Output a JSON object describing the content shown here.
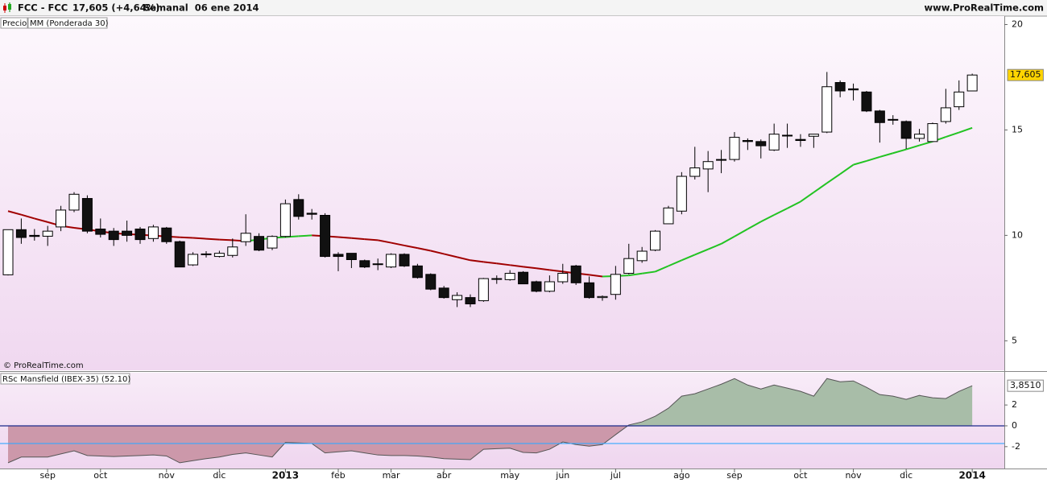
{
  "chart_data": [
    {
      "type": "candlestick",
      "title": "FCC - FCC",
      "subtitle": "17,605 (+4,64%)",
      "period": "Semanal  06 ene 2014",
      "source": "www.ProRealTime.com",
      "watermark": "© ProRealTime.com",
      "name": "Precio",
      "open": [
        8.13,
        10.27,
        10.0,
        9.96,
        10.4,
        11.2,
        11.75,
        10.3,
        10.2,
        10.2,
        10.3,
        9.85,
        10.35,
        9.7,
        8.6,
        9.12,
        9.0,
        9.05,
        9.7,
        9.95,
        9.4,
        9.95,
        11.7,
        11.05,
        10.95,
        9.1,
        9.15,
        8.8,
        8.65,
        8.5,
        9.1,
        8.55,
        8.15,
        7.5,
        6.95,
        7.05,
        6.9,
        7.95,
        7.9,
        8.25,
        7.8,
        7.35,
        7.8,
        8.55,
        7.75,
        7.05,
        7.2,
        8.2,
        8.8,
        9.3,
        10.55,
        11.15,
        12.8,
        13.15,
        13.6,
        13.6,
        14.5,
        14.45,
        14.05,
        14.75,
        14.55,
        14.7,
        14.9,
        17.25,
        16.95,
        16.8,
        15.9,
        15.5,
        15.4,
        14.6,
        14.45,
        15.4,
        16.1,
        16.85
      ],
      "high": [
        10.27,
        10.8,
        10.3,
        10.45,
        11.4,
        12.05,
        11.9,
        10.8,
        10.35,
        10.7,
        10.4,
        10.5,
        10.4,
        9.75,
        9.2,
        9.25,
        9.27,
        9.85,
        11.0,
        10.1,
        10.0,
        11.7,
        11.95,
        11.25,
        11.05,
        9.2,
        9.15,
        8.85,
        8.9,
        9.15,
        9.15,
        8.65,
        8.2,
        7.6,
        7.3,
        7.2,
        7.98,
        8.1,
        8.35,
        8.3,
        7.85,
        8.1,
        8.65,
        8.6,
        8.05,
        7.15,
        8.55,
        9.6,
        9.45,
        10.25,
        11.4,
        13.0,
        14.2,
        14.0,
        14.05,
        14.9,
        14.6,
        14.55,
        15.3,
        15.3,
        14.8,
        14.8,
        17.75,
        17.35,
        17.2,
        16.85,
        15.95,
        15.7,
        15.45,
        15.05,
        15.35,
        16.95,
        17.35,
        17.67
      ],
      "low": [
        8.1,
        9.6,
        9.75,
        9.5,
        10.2,
        11.1,
        10.1,
        9.9,
        9.5,
        9.7,
        9.6,
        9.7,
        9.6,
        8.5,
        8.55,
        8.95,
        8.95,
        8.95,
        9.5,
        9.25,
        9.3,
        9.9,
        10.75,
        10.75,
        8.95,
        8.3,
        8.45,
        8.45,
        8.35,
        8.45,
        8.5,
        7.95,
        7.4,
        7.0,
        6.6,
        6.6,
        6.85,
        7.7,
        7.85,
        7.7,
        7.3,
        7.3,
        7.7,
        7.65,
        7.0,
        6.9,
        6.95,
        8.15,
        8.7,
        9.25,
        10.55,
        11.0,
        12.65,
        12.05,
        12.95,
        13.5,
        14.05,
        13.65,
        14.0,
        14.15,
        14.2,
        14.15,
        14.85,
        16.55,
        16.4,
        15.85,
        14.4,
        15.25,
        14.1,
        14.45,
        14.45,
        15.3,
        15.95,
        16.85
      ],
      "close": [
        10.27,
        9.9,
        9.95,
        10.2,
        11.2,
        11.95,
        10.2,
        10.05,
        9.8,
        10.0,
        9.8,
        10.4,
        9.7,
        8.5,
        9.1,
        9.08,
        9.15,
        9.45,
        10.1,
        9.3,
        9.95,
        11.5,
        10.9,
        11.0,
        9.0,
        9.0,
        8.85,
        8.5,
        8.62,
        9.1,
        8.55,
        8.0,
        7.45,
        7.05,
        7.15,
        6.75,
        7.95,
        7.93,
        8.2,
        7.7,
        7.35,
        7.8,
        8.2,
        7.75,
        7.05,
        7.1,
        8.15,
        8.9,
        9.25,
        10.2,
        11.3,
        12.8,
        13.2,
        13.5,
        13.6,
        14.65,
        14.45,
        14.25,
        14.8,
        14.73,
        14.5,
        14.8,
        17.05,
        16.85,
        16.9,
        15.9,
        15.35,
        15.48,
        14.6,
        14.8,
        15.3,
        16.05,
        16.8,
        17.605
      ],
      "up_color": "#ffffff",
      "down_color": "#111111",
      "ma": {
        "name": "MM (Ponderada 30)",
        "color_up": "#22c322",
        "color_down": "#a00000",
        "values": [
          11.15,
          10.98,
          10.8,
          10.63,
          10.45,
          10.36,
          10.28,
          10.19,
          10.1,
          10.06,
          10.03,
          9.99,
          9.95,
          9.91,
          9.88,
          9.84,
          9.8,
          9.77,
          9.73,
          9.8,
          9.88,
          9.92,
          9.96,
          10.0,
          9.96,
          9.92,
          9.87,
          9.82,
          9.77,
          9.65,
          9.52,
          9.4,
          9.27,
          9.12,
          8.97,
          8.82,
          8.74,
          8.67,
          8.59,
          8.51,
          8.44,
          8.36,
          8.28,
          8.2,
          8.13,
          8.05,
          8.07,
          8.1,
          8.19,
          8.28,
          8.55,
          8.82,
          9.08,
          9.34,
          9.6,
          9.95,
          10.3,
          10.65,
          10.97,
          11.28,
          11.6,
          12.04,
          12.48,
          12.91,
          13.35,
          13.53,
          13.72,
          13.9,
          14.08,
          14.27,
          14.45,
          14.67,
          14.88,
          15.1
        ]
      },
      "last_label": "17,605",
      "xlim": [
        -0.61,
        75.43
      ],
      "ylim": [
        3.6,
        20.4
      ],
      "yticks": [
        5,
        10,
        15,
        20
      ]
    },
    {
      "type": "area",
      "name": "RSc Mansfield (IBEX-35) (52.10)",
      "values": [
        -3.55,
        -3.0,
        -3.0,
        -3.0,
        -2.7,
        -2.4,
        -2.85,
        -2.9,
        -2.95,
        -2.9,
        -2.85,
        -2.8,
        -2.9,
        -3.55,
        -3.35,
        -3.15,
        -3.0,
        -2.75,
        -2.6,
        -2.8,
        -3.0,
        -1.6,
        -1.65,
        -1.7,
        -2.6,
        -2.5,
        -2.4,
        -2.6,
        -2.8,
        -2.85,
        -2.85,
        -2.9,
        -3.0,
        -3.15,
        -3.2,
        -3.25,
        -2.25,
        -2.2,
        -2.15,
        -2.55,
        -2.6,
        -2.25,
        -1.55,
        -1.8,
        -1.95,
        -1.8,
        -0.85,
        0.08,
        0.38,
        0.92,
        1.69,
        2.85,
        3.08,
        3.54,
        4.0,
        4.54,
        3.92,
        3.54,
        3.92,
        3.62,
        3.31,
        2.85,
        4.54,
        4.23,
        4.31,
        3.69,
        3.0,
        2.85,
        2.54,
        2.92,
        2.69,
        2.62,
        3.31,
        3.851
      ],
      "color_pos": "#a8bda8",
      "color_neg": "#cc98aa",
      "line_color": "#555555",
      "hlines": [
        {
          "value": 0,
          "color": "#1b2a8a"
        },
        {
          "value": -1.7,
          "color": "#35a8ff"
        }
      ],
      "last_label": "3,8510",
      "xlim": [
        -0.61,
        75.43
      ],
      "ylim": [
        -4.1,
        5.1
      ],
      "yticks": [
        -2,
        0,
        2
      ],
      "xticks": [
        {
          "value": 3,
          "label": "sep"
        },
        {
          "value": 7,
          "label": "oct"
        },
        {
          "value": 12,
          "label": "nov"
        },
        {
          "value": 16,
          "label": "dic"
        },
        {
          "value": 21,
          "label": "2013"
        },
        {
          "value": 25,
          "label": "feb"
        },
        {
          "value": 29,
          "label": "mar"
        },
        {
          "value": 33,
          "label": "abr"
        },
        {
          "value": 38,
          "label": "may"
        },
        {
          "value": 42,
          "label": "jun"
        },
        {
          "value": 46,
          "label": "jul"
        },
        {
          "value": 51,
          "label": "ago"
        },
        {
          "value": 55,
          "label": "sep"
        },
        {
          "value": 60,
          "label": "oct"
        },
        {
          "value": 64,
          "label": "nov"
        },
        {
          "value": 68,
          "label": "dic"
        },
        {
          "value": 73,
          "label": "2014"
        }
      ]
    }
  ]
}
